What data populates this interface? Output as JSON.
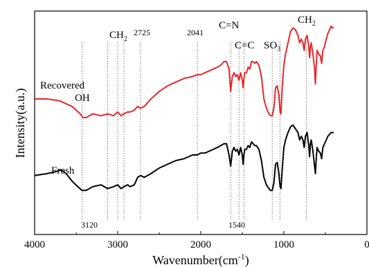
{
  "chart_data": {
    "type": "line",
    "xlabel_main": "Wavenumber(cm",
    "xlabel_sup": "-1",
    "xlabel_tail": ")",
    "ylabel": "Intensity(a.u.)",
    "xlim": [
      4000,
      0
    ],
    "x_ticks": [
      "4000",
      "3000",
      "2000",
      "1000",
      "0"
    ],
    "y_ticks_shown": false,
    "grid": false,
    "series": [
      {
        "name": "Recovered",
        "color": "#e8262a",
        "x": [
          4000,
          3850,
          3700,
          3550,
          3450,
          3420,
          3380,
          3300,
          3200,
          3120,
          3050,
          3000,
          2960,
          2925,
          2880,
          2850,
          2800,
          2760,
          2725,
          2680,
          2600,
          2500,
          2400,
          2300,
          2200,
          2100,
          2041,
          2000,
          1950,
          1900,
          1850,
          1800,
          1760,
          1720,
          1690,
          1660,
          1640,
          1620,
          1600,
          1580,
          1560,
          1540,
          1520,
          1500,
          1490,
          1480,
          1470,
          1450,
          1430,
          1410,
          1390,
          1370,
          1350,
          1330,
          1300,
          1270,
          1240,
          1210,
          1180,
          1160,
          1140,
          1120,
          1100,
          1080,
          1060,
          1045,
          1035,
          1020,
          1000,
          980,
          950,
          920,
          890,
          860,
          830,
          810,
          790,
          770,
          755,
          740,
          720,
          700,
          690,
          680,
          670,
          650,
          630,
          620,
          610,
          600,
          580,
          560,
          545,
          530,
          510,
          490,
          470,
          450,
          430,
          410,
          400
        ],
        "y": [
          0.6,
          0.6,
          0.59,
          0.56,
          0.52,
          0.5,
          0.5,
          0.52,
          0.51,
          0.52,
          0.51,
          0.53,
          0.51,
          0.52,
          0.53,
          0.53,
          0.54,
          0.56,
          0.55,
          0.56,
          0.6,
          0.64,
          0.67,
          0.69,
          0.71,
          0.72,
          0.73,
          0.73,
          0.74,
          0.75,
          0.76,
          0.77,
          0.78,
          0.8,
          0.8,
          0.76,
          0.64,
          0.72,
          0.74,
          0.72,
          0.73,
          0.7,
          0.74,
          0.7,
          0.66,
          0.71,
          0.74,
          0.74,
          0.77,
          0.76,
          0.8,
          0.8,
          0.79,
          0.8,
          0.78,
          0.72,
          0.6,
          0.55,
          0.52,
          0.51,
          0.51,
          0.55,
          0.66,
          0.67,
          0.62,
          0.53,
          0.52,
          0.66,
          0.78,
          0.84,
          0.9,
          0.96,
          0.98,
          0.97,
          0.94,
          0.9,
          0.92,
          0.9,
          0.86,
          0.92,
          0.94,
          0.88,
          0.82,
          0.88,
          0.9,
          0.84,
          0.76,
          0.68,
          0.78,
          0.86,
          0.84,
          0.83,
          0.79,
          0.86,
          0.88,
          0.92,
          0.95,
          0.97,
          0.99,
          0.98,
          0.98
        ]
      },
      {
        "name": "Fresh",
        "color": "#000000",
        "x": [
          4000,
          3850,
          3750,
          3680,
          3620,
          3550,
          3480,
          3430,
          3380,
          3300,
          3200,
          3120,
          3050,
          3000,
          2960,
          2925,
          2880,
          2850,
          2800,
          2760,
          2725,
          2680,
          2600,
          2500,
          2400,
          2300,
          2200,
          2100,
          2041,
          2000,
          1950,
          1900,
          1850,
          1800,
          1760,
          1720,
          1690,
          1660,
          1640,
          1620,
          1600,
          1580,
          1560,
          1540,
          1520,
          1500,
          1490,
          1480,
          1470,
          1450,
          1430,
          1410,
          1390,
          1370,
          1350,
          1330,
          1300,
          1270,
          1240,
          1210,
          1180,
          1160,
          1140,
          1120,
          1100,
          1080,
          1060,
          1045,
          1035,
          1020,
          1000,
          980,
          950,
          920,
          890,
          860,
          830,
          810,
          790,
          770,
          755,
          740,
          720,
          700,
          690,
          680,
          670,
          650,
          630,
          620,
          610,
          600,
          580,
          560,
          545,
          530,
          510,
          490,
          470,
          450,
          430,
          410,
          400
        ],
        "y": [
          0.19,
          0.2,
          0.21,
          0.22,
          0.2,
          0.16,
          0.13,
          0.11,
          0.11,
          0.13,
          0.14,
          0.12,
          0.13,
          0.14,
          0.12,
          0.13,
          0.14,
          0.13,
          0.14,
          0.18,
          0.19,
          0.18,
          0.2,
          0.23,
          0.25,
          0.27,
          0.28,
          0.3,
          0.3,
          0.31,
          0.31,
          0.32,
          0.33,
          0.34,
          0.35,
          0.36,
          0.36,
          0.3,
          0.24,
          0.32,
          0.34,
          0.32,
          0.33,
          0.3,
          0.34,
          0.3,
          0.25,
          0.3,
          0.33,
          0.33,
          0.35,
          0.34,
          0.37,
          0.36,
          0.35,
          0.35,
          0.33,
          0.27,
          0.18,
          0.14,
          0.12,
          0.11,
          0.11,
          0.15,
          0.25,
          0.26,
          0.2,
          0.13,
          0.12,
          0.22,
          0.34,
          0.38,
          0.42,
          0.45,
          0.46,
          0.44,
          0.42,
          0.38,
          0.4,
          0.38,
          0.34,
          0.4,
          0.42,
          0.35,
          0.29,
          0.36,
          0.38,
          0.32,
          0.24,
          0.2,
          0.28,
          0.34,
          0.32,
          0.31,
          0.28,
          0.34,
          0.36,
          0.38,
          0.4,
          0.41,
          0.42,
          0.42,
          0.42
        ]
      }
    ],
    "reference_lines": [
      3430,
      3120,
      3000,
      2925,
      2725,
      2041,
      1640,
      1540,
      1480,
      1140,
      1045,
      730
    ],
    "annotations": [
      {
        "id": "ann-recovered",
        "text": "Recovered"
      },
      {
        "id": "ann-oh",
        "text": "OH"
      },
      {
        "id": "ann-fresh",
        "text": "Fresh"
      },
      {
        "id": "ann-ch2-left",
        "text": "CH",
        "sub": "2"
      },
      {
        "id": "ann-2725",
        "text": "2725"
      },
      {
        "id": "ann-2041",
        "text": "2041"
      },
      {
        "id": "ann-cn",
        "text": "C=N"
      },
      {
        "id": "ann-cc",
        "text": "C=C"
      },
      {
        "id": "ann-so3",
        "text": "SO",
        "sub": "3"
      },
      {
        "id": "ann-ch2-right",
        "text": "CH",
        "sub": "2"
      },
      {
        "id": "ann-3120",
        "text": "3120"
      },
      {
        "id": "ann-1540",
        "text": "1540"
      }
    ]
  }
}
